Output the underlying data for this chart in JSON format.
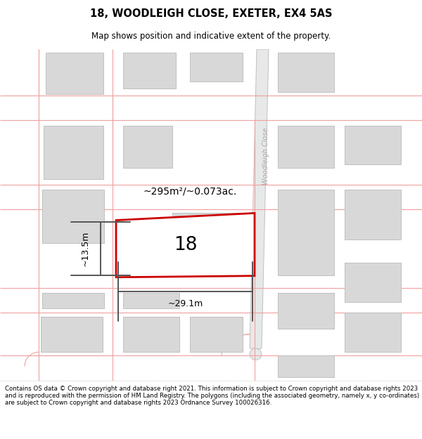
{
  "title_line1": "18, WOODLEIGH CLOSE, EXETER, EX4 5AS",
  "title_line2": "Map shows position and indicative extent of the property.",
  "footer_text": "Contains OS data © Crown copyright and database right 2021. This information is subject to Crown copyright and database rights 2023 and is reproduced with the permission of HM Land Registry. The polygons (including the associated geometry, namely x, y co-ordinates) are subject to Crown copyright and database rights 2023 Ordnance Survey 100026316.",
  "road_line_color": "#f0a0a0",
  "road_line_lw": 0.8,
  "building_fill": "#d8d8d8",
  "building_edge": "#c0c0c0",
  "highlight_edge": "#cc0000",
  "highlight_fill": "#ffffff",
  "woodleigh_fill": "#e8e8e8",
  "woodleigh_edge": "#c0c0c0",
  "area_text": "~295m²/~0.073ac.",
  "number_label": "18",
  "width_label": "~29.1m",
  "height_label": "~13.5m",
  "road_label": "Woodleigh Close",
  "dim_color": "#555555",
  "title_fontsize": 10.5,
  "subtitle_fontsize": 8.5,
  "footer_fontsize": 6.2,
  "map_bg": "#ffffff"
}
